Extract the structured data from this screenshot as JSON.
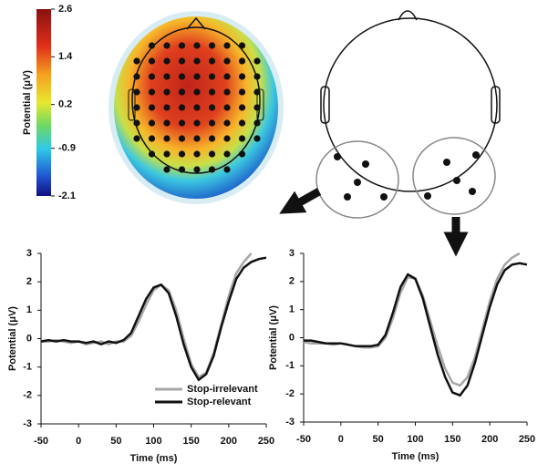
{
  "chart_data": [
    {
      "type": "topomap",
      "colorbar_label": "Potential  (μV)",
      "clim": [
        -2.1,
        2.6
      ],
      "ticks": [
        2.6,
        1.4,
        0.2,
        -0.9,
        -2.1
      ]
    },
    {
      "type": "line",
      "xlabel": "Time (ms)",
      "ylabel": "Potential  (μV)",
      "x": [
        -50,
        -40,
        -30,
        -20,
        -10,
        0,
        10,
        20,
        30,
        40,
        50,
        60,
        70,
        80,
        90,
        100,
        110,
        120,
        130,
        140,
        150,
        160,
        170,
        180,
        190,
        200,
        210,
        220,
        230,
        240,
        250
      ],
      "xlim": [
        -50,
        250
      ],
      "xticks": [
        -50,
        0,
        50,
        100,
        150,
        200,
        250
      ],
      "ylim": [
        -3,
        3
      ],
      "yticks": [
        -3,
        -2,
        -1,
        0,
        1,
        2,
        3
      ],
      "legend": true,
      "series": [
        {
          "name": "Stop-irrelevant",
          "color": "#a6a6a6",
          "values": [
            -0.1,
            -0.1,
            -0.05,
            -0.1,
            -0.15,
            -0.1,
            -0.2,
            -0.15,
            -0.1,
            -0.2,
            -0.1,
            -0.1,
            0.1,
            0.6,
            1.2,
            1.7,
            1.9,
            1.7,
            1.0,
            0.0,
            -0.9,
            -1.35,
            -1.2,
            -0.5,
            0.5,
            1.5,
            2.3,
            2.7,
            3.0,
            null,
            null
          ]
        },
        {
          "name": "Stop-relevant",
          "color": "#111111",
          "values": [
            -0.1,
            -0.05,
            -0.1,
            -0.05,
            -0.1,
            -0.1,
            -0.15,
            -0.1,
            -0.2,
            -0.1,
            -0.15,
            -0.05,
            0.2,
            0.8,
            1.4,
            1.8,
            1.9,
            1.6,
            0.8,
            -0.2,
            -1.0,
            -1.45,
            -1.25,
            -0.6,
            0.4,
            1.3,
            2.1,
            2.5,
            2.7,
            2.8,
            2.85
          ]
        }
      ]
    },
    {
      "type": "line",
      "xlabel": "Time (ms)",
      "ylabel": "Potential  (μV)",
      "x": [
        -50,
        -40,
        -30,
        -20,
        -10,
        0,
        10,
        20,
        30,
        40,
        50,
        60,
        70,
        80,
        90,
        100,
        110,
        120,
        130,
        140,
        150,
        160,
        170,
        180,
        190,
        200,
        210,
        220,
        230,
        240,
        250
      ],
      "xlim": [
        -50,
        250
      ],
      "xticks": [
        -50,
        0,
        50,
        100,
        150,
        200,
        250
      ],
      "ylim": [
        -3,
        3
      ],
      "yticks": [
        -3,
        -2,
        -1,
        0,
        1,
        2,
        3
      ],
      "legend": false,
      "series": [
        {
          "name": "Stop-irrelevant",
          "color": "#a6a6a6",
          "values": [
            -0.15,
            -0.2,
            -0.2,
            -0.2,
            -0.25,
            -0.2,
            -0.25,
            -0.3,
            -0.35,
            -0.35,
            -0.3,
            0.0,
            0.7,
            1.6,
            2.15,
            2.1,
            1.5,
            0.6,
            -0.3,
            -1.1,
            -1.6,
            -1.7,
            -1.4,
            -0.7,
            0.3,
            1.3,
            2.1,
            2.6,
            2.85,
            3.0,
            null
          ]
        },
        {
          "name": "Stop-relevant",
          "color": "#111111",
          "values": [
            -0.1,
            -0.1,
            -0.15,
            -0.2,
            -0.2,
            -0.2,
            -0.25,
            -0.3,
            -0.3,
            -0.3,
            -0.25,
            0.1,
            0.9,
            1.8,
            2.25,
            2.1,
            1.4,
            0.4,
            -0.6,
            -1.4,
            -1.95,
            -2.05,
            -1.7,
            -0.9,
            0.1,
            1.1,
            1.9,
            2.4,
            2.6,
            2.65,
            2.6
          ]
        }
      ]
    }
  ]
}
